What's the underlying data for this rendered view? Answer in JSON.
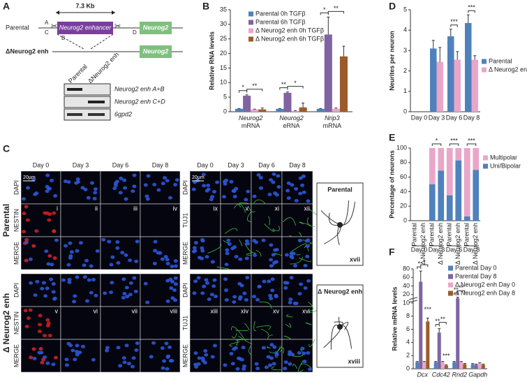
{
  "panel_labels": [
    "A",
    "B",
    "C",
    "D",
    "E",
    "F"
  ],
  "panel_a": {
    "size_label": "7.3 Kb",
    "parental": "Parental",
    "enhancer": "Neurog2 enhancer",
    "gene": "Neurog2",
    "primers": [
      "A",
      "B",
      "C",
      "D"
    ],
    "deletion": "ΔNeurog2 enh",
    "gene_deleted": "Neurog2",
    "gel_lanes": [
      "Parental",
      "ΔNeurog2 enh"
    ],
    "gel_bands": [
      "Neurog2 enh A+B",
      "Neurog2 enh C+D",
      "6gpd2"
    ]
  },
  "panel_c": {
    "days": [
      "Day 0",
      "Day 3",
      "Day 6",
      "Day 8"
    ],
    "stains_left": [
      "DAPI",
      "NESTIN",
      "MERGE"
    ],
    "stains_right": [
      "DAPI",
      "TUJ1",
      "MERGE"
    ],
    "groups": [
      "Parental",
      "Δ Neurog2 enh"
    ],
    "numerals": [
      "i",
      "ii",
      "iii",
      "iv",
      "v",
      "vi",
      "vii",
      "viii",
      "ix",
      "x",
      "xi",
      "xii",
      "xiii",
      "xiv",
      "xv",
      "xvi"
    ],
    "scale_bar": "20µm",
    "insets": [
      {
        "title": "Parental",
        "numeral": "xvii"
      },
      {
        "title": "Δ Neurog2 enh",
        "numeral": "xviii"
      }
    ]
  },
  "chart_data": [
    {
      "type": "bar",
      "ylabel": "Relative RNA levels",
      "categories": [
        "Neurog2 mRNA",
        "Neurog2 eRNA",
        "Nrip3 mRNA"
      ],
      "series": [
        {
          "name": "Parental 0h TGFβ",
          "color": "#4f81bd",
          "values": [
            1,
            1,
            1
          ],
          "errors": [
            0.1,
            0.1,
            0.1
          ]
        },
        {
          "name": "Parental 6h TGFβ",
          "color": "#8064a2",
          "values": [
            5.5,
            6.5,
            26.5
          ],
          "errors": [
            0.3,
            0.3,
            6
          ]
        },
        {
          "name": "Δ Neurog2 enh 0h TGFβ",
          "color": "#e9a6c9",
          "values": [
            0.8,
            0.3,
            1
          ],
          "errors": [
            0.1,
            0.1,
            0.3
          ]
        },
        {
          "name": "Δ Neurog2 enh 6h TGFβ",
          "color": "#9c5b2a",
          "values": [
            0.8,
            1.5,
            19
          ],
          "errors": [
            0.5,
            1.5,
            3.5
          ]
        }
      ],
      "significance": [
        [
          "*",
          "**"
        ],
        [
          "**",
          "*"
        ],
        [
          "*",
          "**"
        ]
      ],
      "ylim": [
        0,
        35
      ],
      "yticks": [
        0,
        5,
        10,
        15,
        20,
        25,
        30,
        35
      ]
    },
    {
      "type": "bar",
      "ylabel": "Neurites per neuron",
      "categories": [
        "Day 0",
        "Day 3",
        "Day 6",
        "Day 8"
      ],
      "series": [
        {
          "name": "Parental",
          "color": "#4f81bd",
          "values": [
            null,
            3.1,
            3.7,
            4.35
          ],
          "errors": [
            null,
            0.4,
            0.35,
            0.4
          ]
        },
        {
          "name": "Δ Neurog2 enh",
          "color": "#e9a6c9",
          "values": [
            null,
            2.45,
            2.55,
            2.55
          ],
          "errors": [
            null,
            0.7,
            0.4,
            0.2
          ]
        }
      ],
      "significance": [
        null,
        null,
        "***",
        "***"
      ],
      "ylim": [
        0,
        5
      ],
      "yticks": [
        0,
        1,
        2,
        3,
        4,
        5
      ]
    },
    {
      "type": "stacked-bar",
      "ylabel": "Percentage of neurons",
      "categories": [
        "Parental",
        "Δ Neurog2 enh",
        "Parental",
        "Δ Neurog2 enh",
        "Parental",
        "Δ Neurog2 enh",
        "Parental",
        "Δ Neurog2 enh"
      ],
      "groups": [
        "Day 0",
        "Day 3",
        "Day 6",
        "Day 8"
      ],
      "series": [
        {
          "name": "Uni/Bipolar",
          "color": "#4f81bd",
          "values": [
            null,
            null,
            50,
            69,
            35,
            83,
            6,
            70
          ]
        },
        {
          "name": "Multipolar",
          "color": "#e9a6c9",
          "values": [
            null,
            null,
            50,
            31,
            65,
            17,
            94,
            30
          ]
        }
      ],
      "significance": [
        null,
        "*",
        "***",
        "***"
      ],
      "ylim": [
        0,
        100
      ],
      "yticks": [
        0,
        20,
        40,
        60,
        80,
        100
      ]
    },
    {
      "type": "bar",
      "ylabel": "Relative mRNA levels",
      "categories": [
        "Dcx",
        "Cdc42",
        "Rnd2",
        "Gapdh"
      ],
      "series": [
        {
          "name": "Parental Day 0",
          "color": "#4f81bd",
          "values": [
            1,
            1,
            1,
            0.7
          ],
          "errors": [
            0.1,
            0.1,
            0.1,
            0.1
          ]
        },
        {
          "name": "Parental Day 8",
          "color": "#8064a2",
          "values": [
            50,
            5.5,
            11.5,
            0.6
          ],
          "errors": [
            25,
            0.6,
            2.5,
            0.1
          ]
        },
        {
          "name": "Δ Neurog2 enh Day 0",
          "color": "#e9a6c9",
          "values": [
            1,
            1,
            1,
            0.8
          ],
          "errors": [
            0.1,
            0.1,
            0.1,
            0.1
          ]
        },
        {
          "name": "Δ Neurog2 enh Day 8",
          "color": "#9c5b2a",
          "values": [
            7.2,
            0.5,
            0.7,
            0.6
          ],
          "errors": [
            0.5,
            0.1,
            0.1,
            0.1
          ]
        }
      ],
      "significance": [
        [
          "*",
          "*",
          "***"
        ],
        [
          "**",
          "**",
          "***"
        ],
        [
          "**",
          "**"
        ],
        null
      ],
      "ylim": [
        0,
        80
      ],
      "ybreak": 10,
      "yticks": [
        0,
        2,
        4,
        6,
        8,
        10,
        20,
        40,
        60,
        80
      ]
    }
  ]
}
